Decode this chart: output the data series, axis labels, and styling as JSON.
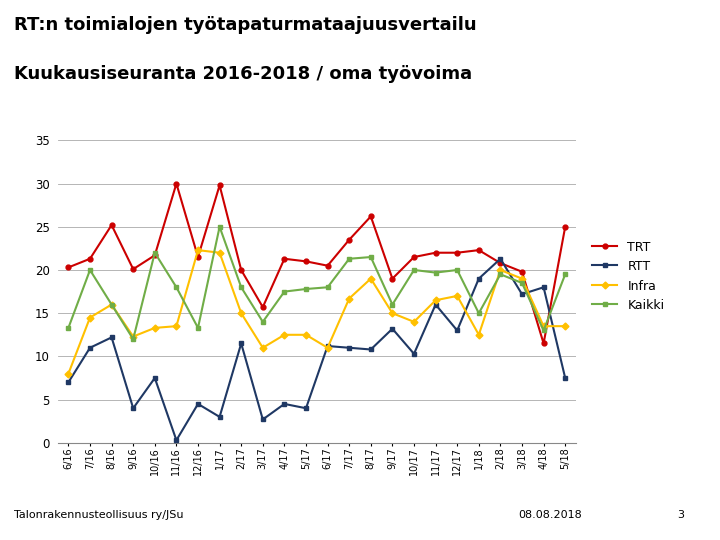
{
  "title_line1": "RT:n toimialojen työtapaturmataajuusvertailu",
  "title_line2": "Kuukausiseuranta 2016-2018 / oma työvoima",
  "x_labels": [
    "6/16",
    "7/16",
    "8/16",
    "9/16",
    "10/16",
    "11/16",
    "12/16",
    "1/17",
    "2/17",
    "3/17",
    "4/17",
    "5/17",
    "6/17",
    "7/17",
    "8/17",
    "9/17",
    "10/17",
    "11/17",
    "12/17",
    "1/18",
    "2/18",
    "3/18",
    "4/18",
    "5/18"
  ],
  "TRT": [
    20.3,
    21.3,
    25.2,
    20.1,
    21.7,
    30.0,
    21.5,
    29.8,
    20.0,
    15.7,
    21.3,
    21.0,
    20.5,
    23.5,
    26.2,
    19.0,
    21.5,
    22.0,
    22.0,
    22.3,
    20.8,
    19.8,
    11.5,
    25.0
  ],
  "RTT": [
    7.0,
    11.0,
    12.2,
    4.0,
    7.5,
    0.3,
    4.5,
    3.0,
    11.5,
    2.7,
    4.5,
    4.0,
    11.2,
    11.0,
    10.8,
    13.2,
    10.3,
    16.0,
    13.0,
    19.0,
    21.3,
    17.2,
    18.0,
    7.5
  ],
  "Infra": [
    8.0,
    14.5,
    16.0,
    12.3,
    13.3,
    13.5,
    22.3,
    22.0,
    15.0,
    11.0,
    12.5,
    12.5,
    11.0,
    16.7,
    19.0,
    15.0,
    14.0,
    16.5,
    17.0,
    12.5,
    20.0,
    19.0,
    13.5,
    13.5
  ],
  "Kaikki": [
    13.3,
    20.0,
    16.0,
    12.0,
    22.0,
    18.0,
    13.3,
    25.0,
    18.0,
    14.0,
    17.5,
    17.8,
    18.0,
    21.3,
    21.5,
    16.0,
    20.0,
    19.7,
    20.0,
    15.0,
    19.5,
    18.5,
    13.0,
    19.5
  ],
  "TRT_color": "#CC0000",
  "RTT_color": "#1F3864",
  "Infra_color": "#FFC000",
  "Kaikki_color": "#70AD47",
  "ylim": [
    0,
    35
  ],
  "yticks": [
    0,
    5,
    10,
    15,
    20,
    25,
    30,
    35
  ],
  "footer_left": "Talonrakennusteollisuus ry/JSu",
  "footer_right": "08.08.2018",
  "footer_page": "3",
  "bg_color": "#FFFFFF",
  "grid_color": "#AAAAAA"
}
